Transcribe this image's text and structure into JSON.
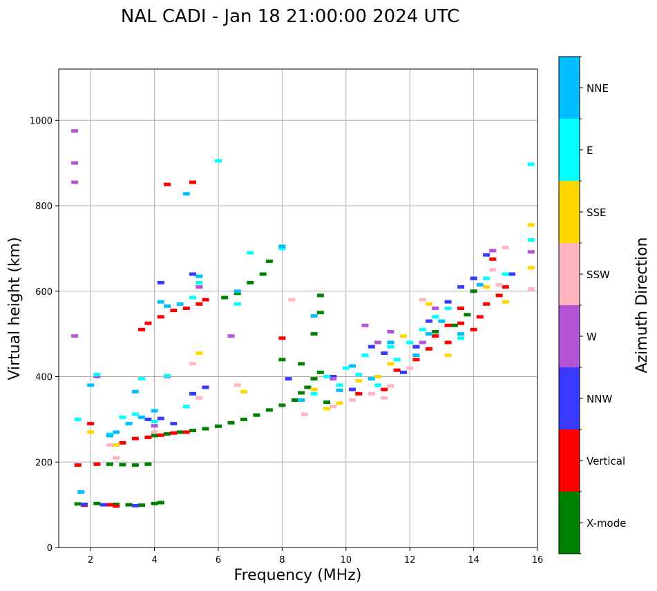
{
  "chart_data": {
    "type": "scatter",
    "title": "NAL CADI - Jan 18 21:00:00 2024 UTC",
    "xlabel": "Frequency (MHz)",
    "ylabel": "Virtual height (km)",
    "xlim": [
      1,
      16
    ],
    "ylim": [
      0,
      1120
    ],
    "xticks": [
      2,
      4,
      6,
      8,
      10,
      12,
      14,
      16
    ],
    "yticks": [
      0,
      200,
      400,
      600,
      800,
      1000
    ],
    "grid": true,
    "colorbar": {
      "label": "Azimuth Direction",
      "categories": [
        {
          "name": "X-mode",
          "color": "#008000"
        },
        {
          "name": "Vertical",
          "color": "#ff0000"
        },
        {
          "name": "NNW",
          "color": "#3a3aff"
        },
        {
          "name": "W",
          "color": "#b455d6"
        },
        {
          "name": "SSW",
          "color": "#ffb6c1"
        },
        {
          "name": "SSE",
          "color": "#ffd700"
        },
        {
          "name": "E",
          "color": "#00ffff"
        },
        {
          "name": "NNE",
          "color": "#00bfff"
        }
      ]
    },
    "series": [
      {
        "name": "X-mode",
        "points": [
          [
            1.6,
            102
          ],
          [
            2.2,
            103
          ],
          [
            2.8,
            101
          ],
          [
            3.2,
            100
          ],
          [
            3.6,
            99
          ],
          [
            4.0,
            103
          ],
          [
            4.2,
            105
          ],
          [
            2.6,
            195
          ],
          [
            3.0,
            194
          ],
          [
            3.4,
            193
          ],
          [
            3.8,
            195
          ],
          [
            4.0,
            262
          ],
          [
            4.4,
            266
          ],
          [
            4.8,
            270
          ],
          [
            5.2,
            274
          ],
          [
            5.6,
            278
          ],
          [
            6.0,
            284
          ],
          [
            6.4,
            292
          ],
          [
            6.8,
            300
          ],
          [
            7.2,
            310
          ],
          [
            7.6,
            322
          ],
          [
            8.0,
            333
          ],
          [
            8.4,
            345
          ],
          [
            8.6,
            362
          ],
          [
            8.8,
            375
          ],
          [
            9.0,
            395
          ],
          [
            9.2,
            410
          ],
          [
            9.4,
            340
          ],
          [
            6.2,
            585
          ],
          [
            6.6,
            595
          ],
          [
            7.0,
            620
          ],
          [
            7.4,
            640
          ],
          [
            7.6,
            670
          ],
          [
            8.0,
            440
          ],
          [
            8.6,
            430
          ],
          [
            9.0,
            500
          ],
          [
            9.2,
            550
          ],
          [
            9.2,
            590
          ],
          [
            12.2,
            470
          ],
          [
            12.8,
            505
          ],
          [
            13.4,
            520
          ],
          [
            13.8,
            545
          ],
          [
            14.0,
            600
          ],
          [
            14.0,
            630
          ]
        ]
      },
      {
        "name": "Vertical",
        "points": [
          [
            1.6,
            193
          ],
          [
            1.8,
            99
          ],
          [
            2.2,
            195
          ],
          [
            2.6,
            100
          ],
          [
            2.8,
            97
          ],
          [
            3.0,
            245
          ],
          [
            3.4,
            255
          ],
          [
            3.8,
            258
          ],
          [
            4.2,
            263
          ],
          [
            4.6,
            268
          ],
          [
            5.0,
            270
          ],
          [
            3.6,
            510
          ],
          [
            3.8,
            525
          ],
          [
            4.2,
            540
          ],
          [
            4.6,
            555
          ],
          [
            5.0,
            560
          ],
          [
            5.4,
            570
          ],
          [
            5.6,
            580
          ],
          [
            2.0,
            290
          ],
          [
            4.4,
            850
          ],
          [
            5.2,
            855
          ],
          [
            8.0,
            490
          ],
          [
            10.4,
            360
          ],
          [
            11.2,
            370
          ],
          [
            11.6,
            415
          ],
          [
            12.2,
            440
          ],
          [
            12.6,
            465
          ],
          [
            12.8,
            495
          ],
          [
            13.2,
            480
          ],
          [
            13.2,
            520
          ],
          [
            13.6,
            525
          ],
          [
            13.6,
            560
          ],
          [
            14.0,
            510
          ],
          [
            14.2,
            540
          ],
          [
            14.4,
            570
          ],
          [
            14.8,
            590
          ],
          [
            15.0,
            610
          ],
          [
            14.6,
            675
          ]
        ]
      },
      {
        "name": "NNW",
        "points": [
          [
            1.8,
            101
          ],
          [
            2.4,
            100
          ],
          [
            3.4,
            98
          ],
          [
            3.8,
            300
          ],
          [
            4.2,
            302
          ],
          [
            4.6,
            290
          ],
          [
            5.2,
            360
          ],
          [
            5.6,
            375
          ],
          [
            4.2,
            620
          ],
          [
            5.2,
            640
          ],
          [
            8.2,
            395
          ],
          [
            9.6,
            400
          ],
          [
            10.2,
            370
          ],
          [
            10.8,
            470
          ],
          [
            11.2,
            455
          ],
          [
            11.8,
            410
          ],
          [
            12.2,
            470
          ],
          [
            12.6,
            530
          ],
          [
            13.2,
            575
          ],
          [
            13.6,
            610
          ],
          [
            14.0,
            630
          ],
          [
            14.4,
            685
          ],
          [
            15.2,
            640
          ]
        ]
      },
      {
        "name": "W",
        "points": [
          [
            1.5,
            495
          ],
          [
            1.5,
            855
          ],
          [
            1.5,
            900
          ],
          [
            1.5,
            975
          ],
          [
            2.2,
            400
          ],
          [
            4.0,
            285
          ],
          [
            4.4,
            400
          ],
          [
            5.4,
            610
          ],
          [
            6.4,
            495
          ],
          [
            9.6,
            395
          ],
          [
            10.6,
            520
          ],
          [
            11.0,
            480
          ],
          [
            11.4,
            505
          ],
          [
            12.4,
            480
          ],
          [
            12.8,
            560
          ],
          [
            14.6,
            695
          ],
          [
            15.8,
            692
          ]
        ]
      },
      {
        "name": "SSW",
        "points": [
          [
            2.6,
            240
          ],
          [
            2.8,
            210
          ],
          [
            4.0,
            270
          ],
          [
            5.2,
            430
          ],
          [
            5.4,
            350
          ],
          [
            6.6,
            380
          ],
          [
            8.3,
            580
          ],
          [
            8.7,
            312
          ],
          [
            9.6,
            330
          ],
          [
            10.2,
            345
          ],
          [
            10.8,
            360
          ],
          [
            11.2,
            350
          ],
          [
            11.4,
            378
          ],
          [
            12.0,
            420
          ],
          [
            12.4,
            580
          ],
          [
            14.6,
            650
          ],
          [
            14.8,
            615
          ],
          [
            15.0,
            702
          ],
          [
            15.8,
            605
          ]
        ]
      },
      {
        "name": "SSE",
        "points": [
          [
            2.0,
            270
          ],
          [
            2.8,
            240
          ],
          [
            5.4,
            455
          ],
          [
            9.0,
            370
          ],
          [
            9.4,
            325
          ],
          [
            9.8,
            338
          ],
          [
            10.4,
            390
          ],
          [
            11.0,
            400
          ],
          [
            11.4,
            430
          ],
          [
            11.8,
            495
          ],
          [
            12.6,
            570
          ],
          [
            13.2,
            450
          ],
          [
            14.4,
            610
          ],
          [
            15.0,
            575
          ],
          [
            15.8,
            755
          ],
          [
            15.8,
            655
          ],
          [
            6.8,
            365
          ]
        ]
      },
      {
        "name": "E",
        "points": [
          [
            1.6,
            300
          ],
          [
            2.2,
            405
          ],
          [
            2.6,
            265
          ],
          [
            3.0,
            305
          ],
          [
            3.4,
            312
          ],
          [
            3.6,
            395
          ],
          [
            4.0,
            295
          ],
          [
            4.4,
            402
          ],
          [
            5.0,
            330
          ],
          [
            5.2,
            585
          ],
          [
            6.0,
            905
          ],
          [
            6.6,
            570
          ],
          [
            5.4,
            620
          ],
          [
            7.0,
            690
          ],
          [
            8.0,
            700
          ],
          [
            9.0,
            360
          ],
          [
            9.4,
            400
          ],
          [
            9.8,
            380
          ],
          [
            10.0,
            420
          ],
          [
            10.4,
            405
          ],
          [
            10.6,
            450
          ],
          [
            11.0,
            380
          ],
          [
            11.4,
            470
          ],
          [
            11.6,
            440
          ],
          [
            12.0,
            480
          ],
          [
            12.4,
            510
          ],
          [
            12.8,
            540
          ],
          [
            13.2,
            560
          ],
          [
            13.6,
            490
          ],
          [
            14.4,
            630
          ],
          [
            15.0,
            640
          ],
          [
            15.8,
            897
          ],
          [
            15.8,
            720
          ]
        ]
      },
      {
        "name": "NNE",
        "points": [
          [
            1.7,
            130
          ],
          [
            2.6,
            262
          ],
          [
            2.8,
            270
          ],
          [
            3.2,
            290
          ],
          [
            3.6,
            305
          ],
          [
            4.0,
            320
          ],
          [
            4.2,
            575
          ],
          [
            4.4,
            565
          ],
          [
            4.8,
            570
          ],
          [
            5.0,
            828
          ],
          [
            5.4,
            635
          ],
          [
            6.6,
            600
          ],
          [
            8.0,
            705
          ],
          [
            8.6,
            345
          ],
          [
            9.0,
            542
          ],
          [
            9.8,
            368
          ],
          [
            10.2,
            425
          ],
          [
            10.8,
            395
          ],
          [
            11.4,
            480
          ],
          [
            12.2,
            450
          ],
          [
            12.6,
            500
          ],
          [
            13.0,
            530
          ],
          [
            13.6,
            500
          ],
          [
            14.2,
            615
          ],
          [
            2.0,
            380
          ],
          [
            3.4,
            365
          ]
        ]
      }
    ]
  }
}
